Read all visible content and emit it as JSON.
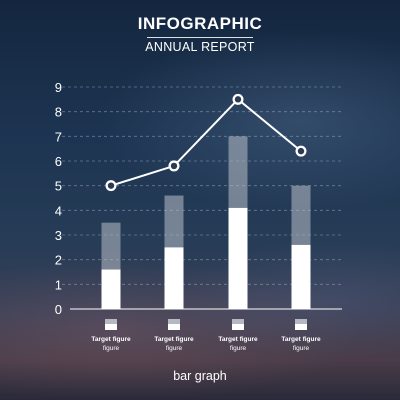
{
  "header": {
    "title": "INFOGRAPHIC",
    "subtitle": "ANNUAL REPORT"
  },
  "footer": {
    "label": "bar graph"
  },
  "chart_data": {
    "type": "bar",
    "ylim": [
      0,
      9
    ],
    "yticks": [
      "0",
      "1",
      "2",
      "3",
      "4",
      "5",
      "6",
      "7",
      "8",
      "9"
    ],
    "grid": true,
    "categories": [
      "Target figure",
      "Target figure",
      "Target figure",
      "Target figure"
    ],
    "category_sublabels": [
      "figure",
      "figure",
      "figure",
      "figure"
    ],
    "series": [
      {
        "values": [
          1.6,
          2.5,
          4.1,
          2.6
        ]
      },
      {
        "values": [
          3.5,
          4.6,
          7.0,
          5.0
        ]
      },
      {
        "values": [
          5.0,
          5.8,
          8.5,
          6.4
        ]
      }
    ],
    "colors": {
      "bar_top": "#b9c0c9",
      "bar_bottom": "#ffffff",
      "line": "#ffffff",
      "grid": "#9fb0c2"
    }
  }
}
